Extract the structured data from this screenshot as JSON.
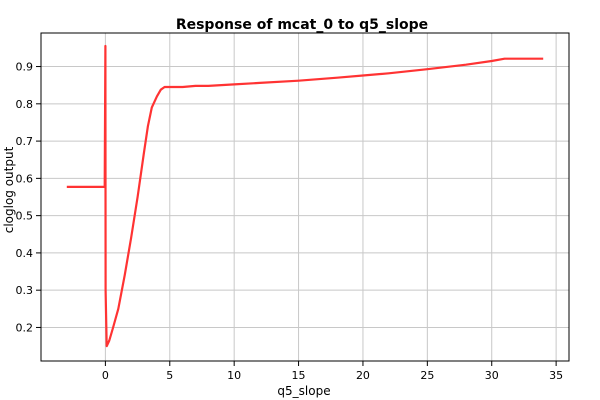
{
  "chart_data": {
    "type": "line",
    "title": "Response of mcat_0 to q5_slope",
    "xlabel": "q5_slope",
    "ylabel": "cloglog output",
    "xlim": [
      -5,
      36
    ],
    "ylim": [
      0.11,
      0.99
    ],
    "x_ticks": [
      0,
      5,
      10,
      15,
      20,
      25,
      30,
      35
    ],
    "y_ticks": [
      0.2,
      0.3,
      0.4,
      0.5,
      0.6,
      0.7,
      0.8,
      0.9
    ],
    "grid": true,
    "series": [
      {
        "color": "#ff3333",
        "x": [
          -3.0,
          -0.05,
          -0.05,
          0.0,
          0.02,
          0.1,
          0.3,
          0.6,
          1.0,
          1.5,
          2.0,
          2.5,
          3.0,
          3.3,
          3.6,
          4.0,
          4.3,
          4.6,
          5.0,
          6.0,
          7.0,
          8.0,
          10.0,
          12.0,
          15.0,
          18.0,
          20.0,
          22.0,
          25.0,
          28.0,
          30.0,
          31.0,
          34.0
        ],
        "y": [
          0.577,
          0.577,
          0.577,
          0.955,
          0.3,
          0.15,
          0.165,
          0.2,
          0.25,
          0.34,
          0.44,
          0.55,
          0.67,
          0.74,
          0.79,
          0.82,
          0.838,
          0.845,
          0.845,
          0.845,
          0.848,
          0.848,
          0.852,
          0.856,
          0.862,
          0.87,
          0.876,
          0.882,
          0.893,
          0.905,
          0.915,
          0.921,
          0.921
        ]
      }
    ]
  }
}
